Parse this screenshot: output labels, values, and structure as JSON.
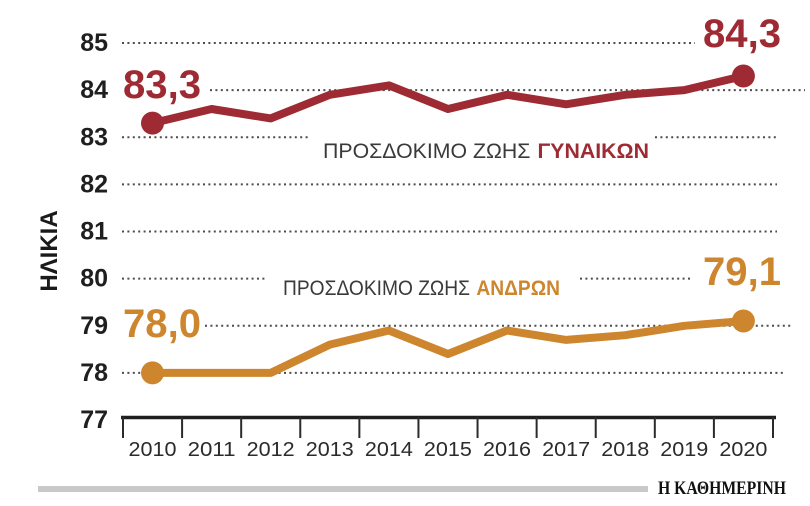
{
  "chart_data": {
    "type": "line",
    "categories": [
      "2010",
      "2011",
      "2012",
      "2013",
      "2014",
      "2015",
      "2016",
      "2017",
      "2018",
      "2019",
      "2020"
    ],
    "series": [
      {
        "key": "women",
        "name": "ΠΡΟΣΔΟΚΙΜΟ ΖΩΗΣ ΓΥΝΑΙΚΩΝ",
        "color": "#9e2b33",
        "values": [
          83.3,
          83.6,
          83.4,
          83.9,
          84.1,
          83.6,
          83.9,
          83.7,
          83.9,
          84.0,
          84.3
        ],
        "start_label": "83,3",
        "end_label": "84,3"
      },
      {
        "key": "men",
        "name": "ΠΡΟΣΔΟΚΙΜΟ ΖΩΗΣ ΑΝΔΡΩΝ",
        "color": "#cd862d",
        "values": [
          78.0,
          78.0,
          78.0,
          78.6,
          78.9,
          78.4,
          78.9,
          78.7,
          78.8,
          79.0,
          79.1
        ],
        "start_label": "78,0",
        "end_label": "79,1"
      }
    ],
    "ylabel": "ΗΛΙΚΙΑ",
    "xlabel": "",
    "yticks": [
      85,
      84,
      83,
      82,
      81,
      80,
      79,
      78,
      77
    ],
    "ylim": [
      77,
      85
    ],
    "grid": "horizontal-dotted",
    "legend_position": "inline-annotations"
  },
  "labels": {
    "y_axis_title": "ΗΛΙΚΙΑ",
    "women_prefix": "ΠΡΟΣΔΟΚΙΜΟ ΖΩΗΣ",
    "women_word": "ΓΥΝΑΙΚΩΝ",
    "men_prefix": "ΠΡΟΣΔΟΚΙΜΟ ΖΩΗΣ",
    "men_word": "ΑΝΔΡΩΝ",
    "women_start": "83,3",
    "women_end": "84,3",
    "men_start": "78,0",
    "men_end": "79,1"
  },
  "footer": {
    "source": "Η ΚΑΘΗΜΕΡΙΝΗ"
  },
  "colors": {
    "women": "#9e2b33",
    "men": "#cd862d",
    "grid_dots": "#4c4c4c",
    "axis": "#1e1e1e",
    "tick_text": "#1f1f1f",
    "legend_text": "#3a3a3a",
    "footer_bar": "#c9c9c9",
    "background": "#ffffff"
  }
}
